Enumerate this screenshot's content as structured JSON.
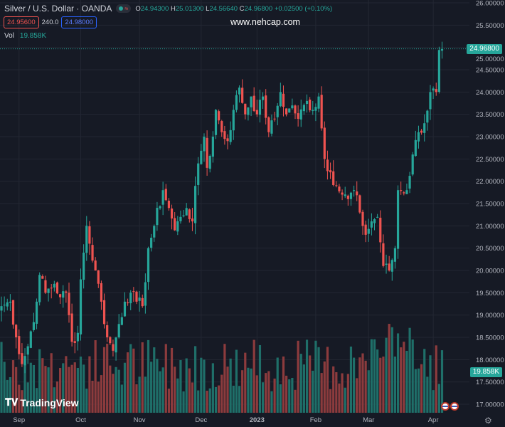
{
  "header": {
    "title": "Silver / U.S. Dollar · OANDA",
    "open_label": "O",
    "open": "24.94300",
    "high_label": "H",
    "high": "25.01300",
    "low_label": "L",
    "low": "24.56640",
    "close_label": "C",
    "close": "24.96800",
    "change": "+0.02500 (+0.10%)"
  },
  "quote": {
    "bid": "24.95600",
    "spread": "240.0",
    "ask": "24.98000"
  },
  "watermark": "www.nehcap.com",
  "volume": {
    "label": "Vol",
    "value": "19.858K"
  },
  "logo": "TradingView",
  "colors": {
    "up": "#26a69a",
    "down": "#ef5350",
    "vol_up": "#1f6f69",
    "vol_down": "#8c3b3d",
    "grid": "#232733"
  },
  "chart_data": {
    "type": "candlestick",
    "symbol": "XAGUSD",
    "ylim": [
      16.9,
      26.05
    ],
    "y_ticks": [
      "26.00000",
      "25.50000",
      "25.00000",
      "24.50000",
      "24.00000",
      "23.50000",
      "23.00000",
      "22.50000",
      "22.00000",
      "21.50000",
      "21.00000",
      "20.50000",
      "20.00000",
      "19.50000",
      "19.00000",
      "18.50000",
      "18.00000",
      "17.50000",
      "17.00000"
    ],
    "x_ticks": [
      {
        "label": "Sep",
        "bar": 6
      },
      {
        "label": "Oct",
        "bar": 27
      },
      {
        "label": "Nov",
        "bar": 47
      },
      {
        "label": "Dec",
        "bar": 68
      },
      {
        "label": "2023",
        "bar": 87
      },
      {
        "label": "Feb",
        "bar": 107
      },
      {
        "label": "Mar",
        "bar": 125
      },
      {
        "label": "Apr",
        "bar": 147
      }
    ],
    "close_keypoints": [
      [
        0,
        19.2
      ],
      [
        3,
        19.3
      ],
      [
        5,
        18.5
      ],
      [
        7,
        17.9
      ],
      [
        9,
        18.3
      ],
      [
        12,
        19.3
      ],
      [
        13,
        19.9
      ],
      [
        15,
        19.5
      ],
      [
        18,
        19.7
      ],
      [
        20,
        19.4
      ],
      [
        22,
        19.5
      ],
      [
        24,
        18.4
      ],
      [
        26,
        18.6
      ],
      [
        27,
        19.8
      ],
      [
        29,
        21.0
      ],
      [
        30,
        20.6
      ],
      [
        32,
        20.0
      ],
      [
        34,
        19.3
      ],
      [
        36,
        18.5
      ],
      [
        38,
        18.2
      ],
      [
        40,
        18.8
      ],
      [
        42,
        19.3
      ],
      [
        44,
        19.5
      ],
      [
        46,
        19.3
      ],
      [
        48,
        19.2
      ],
      [
        50,
        20.5
      ],
      [
        52,
        21.0
      ],
      [
        55,
        21.8
      ],
      [
        57,
        21.4
      ],
      [
        59,
        20.9
      ],
      [
        61,
        21.2
      ],
      [
        63,
        21.4
      ],
      [
        65,
        21.1
      ],
      [
        67,
        22.4
      ],
      [
        69,
        23.0
      ],
      [
        70,
        22.3
      ],
      [
        72,
        23.0
      ],
      [
        73,
        23.6
      ],
      [
        75,
        23.1
      ],
      [
        77,
        22.9
      ],
      [
        79,
        23.6
      ],
      [
        81,
        24.1
      ],
      [
        83,
        23.5
      ],
      [
        85,
        23.9
      ],
      [
        87,
        23.5
      ],
      [
        89,
        23.9
      ],
      [
        91,
        23.1
      ],
      [
        93,
        23.4
      ],
      [
        95,
        24.0
      ],
      [
        97,
        23.5
      ],
      [
        99,
        23.7
      ],
      [
        101,
        23.4
      ],
      [
        104,
        23.8
      ],
      [
        106,
        23.6
      ],
      [
        108,
        23.9
      ],
      [
        110,
        22.5
      ],
      [
        112,
        22.2
      ],
      [
        114,
        21.9
      ],
      [
        116,
        21.7
      ],
      [
        118,
        21.6
      ],
      [
        120,
        21.8
      ],
      [
        122,
        21.3
      ],
      [
        124,
        20.8
      ],
      [
        126,
        21.1
      ],
      [
        128,
        21.2
      ],
      [
        130,
        20.1
      ],
      [
        132,
        20.0
      ],
      [
        134,
        20.5
      ],
      [
        135,
        21.8
      ],
      [
        138,
        21.8
      ],
      [
        140,
        22.6
      ],
      [
        142,
        23.1
      ],
      [
        144,
        23.3
      ],
      [
        146,
        24.0
      ],
      [
        148,
        24.0
      ],
      [
        149,
        24.943
      ],
      [
        150,
        24.968
      ]
    ],
    "last_price": "24.96800",
    "last_volume": "19.858K"
  }
}
